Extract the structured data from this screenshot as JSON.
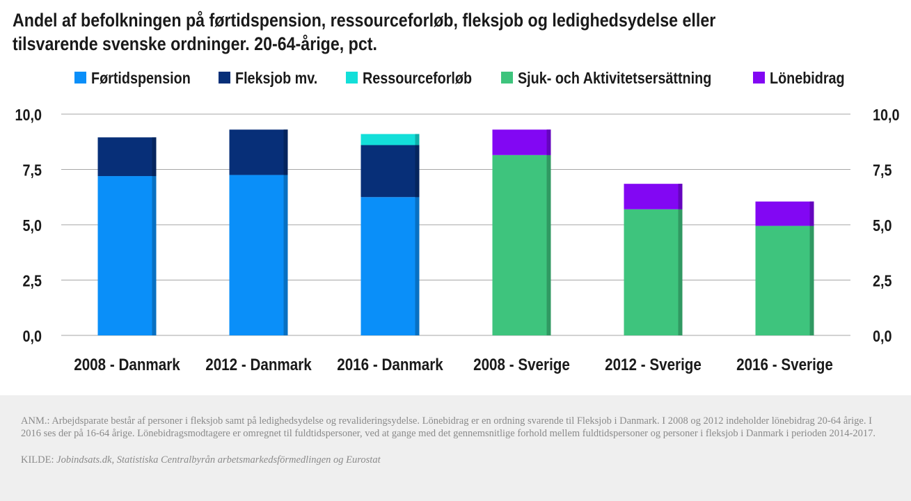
{
  "title": "Andel af befolkningen på førtidspension, ressourceforløb, fleksjob og ledighedsydelse eller tilsvarende svenske ordninger. 20-64-årige, pct.",
  "footer": {
    "note": "ANM.: Arbejdsparate består af personer i fleksjob samt på ledighedsydelse og revalideringsydelse. Lönebidrag er en ordning svarende til Fleksjob i Danmark. I 2008 og 2012 indeholder lönebidrag 20-64 årige. I 2016 ses der på 16-64 årige. Lönebidragsmodtagere er omregnet til fuldtidspersoner, ved at gange med det gennemsnitlige forhold mellem fuldtidspersoner og personer i fleksjob i Danmark i perioden 2014-2017.",
    "source_label": "KILDE:",
    "source_text": "Jobindsats.dk, Statistiska Centralbyrån arbetsmarkedsförmedlingen og Eurostat"
  },
  "chart_data": {
    "type": "bar",
    "stacked": true,
    "categories": [
      "2008 - Danmark",
      "2012 - Danmark",
      "2016 - Danmark",
      "2008 - Sverige",
      "2012 - Sverige",
      "2016 - Sverige"
    ],
    "series": [
      {
        "name": "Førtidspension",
        "color": "#0a8ff9",
        "values": [
          7.2,
          7.25,
          6.25,
          0,
          0,
          0
        ]
      },
      {
        "name": "Fleksjob mv.",
        "color": "#072f78",
        "values": [
          1.75,
          2.05,
          2.35,
          0,
          0,
          0
        ]
      },
      {
        "name": "Ressourceforløb",
        "color": "#13dfd9",
        "values": [
          0,
          0,
          0.5,
          0,
          0,
          0
        ]
      },
      {
        "name": "Sjuk- och Aktivitetsersättning",
        "color": "#3ec47d",
        "values": [
          0,
          0,
          0,
          8.15,
          5.7,
          4.95
        ]
      },
      {
        "name": "Lönebidrag",
        "color": "#8207f3",
        "values": [
          0,
          0,
          0,
          1.15,
          1.15,
          1.1
        ]
      }
    ],
    "ylim": [
      0,
      10
    ],
    "yticks": [
      "0,0",
      "2,5",
      "5,0",
      "7,5",
      "10,0"
    ],
    "ytick_values": [
      0,
      2.5,
      5,
      7.5,
      10
    ],
    "secondary_axis": true,
    "grid": true,
    "legend_position": "top"
  }
}
